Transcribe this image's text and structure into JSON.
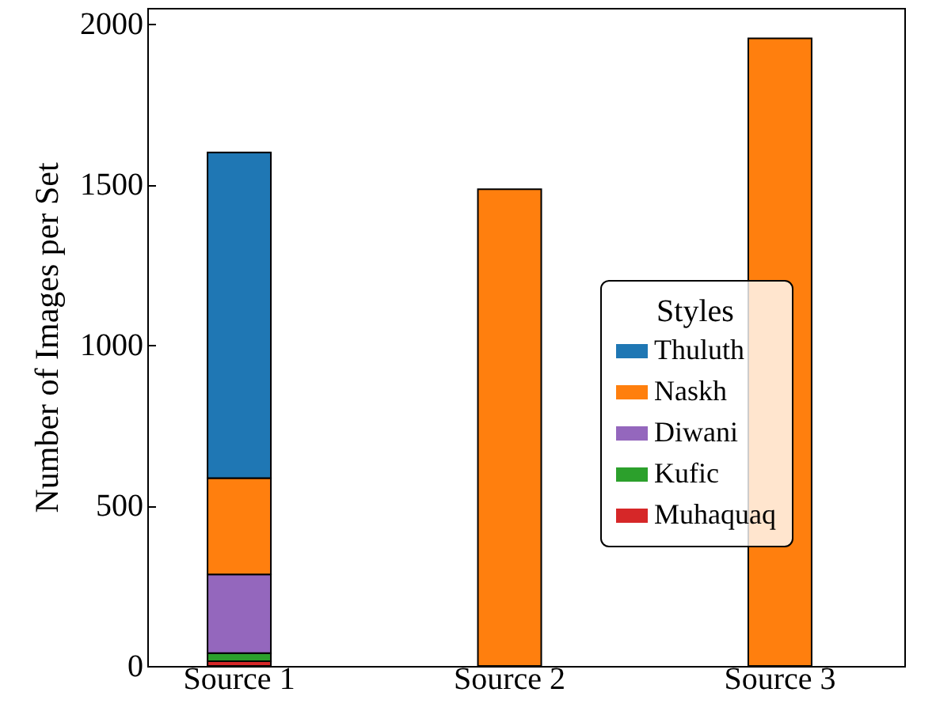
{
  "chart_data": {
    "type": "bar",
    "ylabel": "Number of Images per Set",
    "legend_title": "Styles",
    "stacked": true,
    "grid": false,
    "legend": "bottom right",
    "categories": [
      "Source 1",
      "Source 2",
      "Source 3"
    ],
    "series": [
      {
        "name": "Muhaquaq",
        "color": "#d62728",
        "values": [
          15,
          null,
          null
        ]
      },
      {
        "name": "Kufic",
        "color": "#2ca02c",
        "values": [
          25,
          null,
          null
        ]
      },
      {
        "name": "Diwani",
        "color": "#9467bd",
        "values": [
          245,
          null,
          null
        ]
      },
      {
        "name": "Naskh",
        "color": "#ff7f0e",
        "values": [
          300,
          1485,
          1955
        ]
      },
      {
        "name": "Thuluth",
        "color": "#1f77b4",
        "values": [
          1015,
          null,
          null
        ]
      }
    ],
    "ylim": [
      0,
      2050
    ],
    "yticks": [
      0,
      500,
      1000,
      1500,
      2000
    ]
  }
}
